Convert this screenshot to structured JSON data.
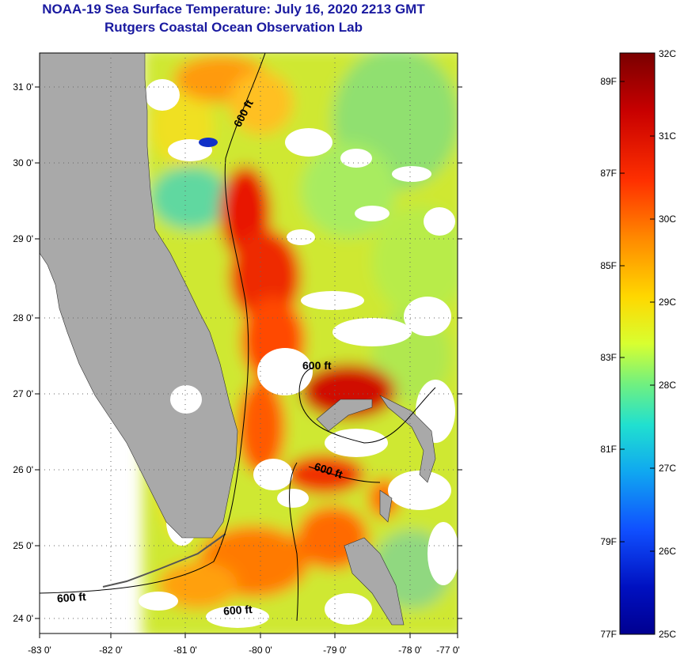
{
  "header": {
    "title": "NOAA-19 Sea Surface Temperature:  July 16, 2020 2213 GMT",
    "subtitle": "Rutgers Coastal Ocean Observation Lab"
  },
  "map": {
    "lon_labels": [
      "-83 0'",
      "-82 0'",
      "-81 0'",
      "-80 0'",
      "-79 0'",
      "-78 0'",
      "-77 0'"
    ],
    "lat_labels": [
      "31 0'",
      "30 0'",
      "29 0'",
      "28 0'",
      "27 0'",
      "26 0'",
      "25 0'",
      "24 0'"
    ],
    "contour_labels": [
      "600 ft",
      "600 ft",
      "600 ft",
      "600 ft",
      "600 ft"
    ],
    "colors": {
      "land": "#a9a9a9",
      "no_data": "#ffffff",
      "contour": "#000000"
    }
  },
  "colorbar": {
    "celsius_labels": [
      "32C",
      "31C",
      "30C",
      "29C",
      "28C",
      "27C",
      "26C",
      "25C"
    ],
    "fahrenheit_labels": [
      "89F",
      "87F",
      "85F",
      "83F",
      "81F",
      "79F",
      "77F"
    ],
    "gradient": [
      "#7a0000",
      "#c80000",
      "#ff3000",
      "#ff8a00",
      "#ffd800",
      "#d8ff30",
      "#70f080",
      "#20e0d0",
      "#10a8f0",
      "#1050ff",
      "#0010c0",
      "#000090"
    ]
  }
}
